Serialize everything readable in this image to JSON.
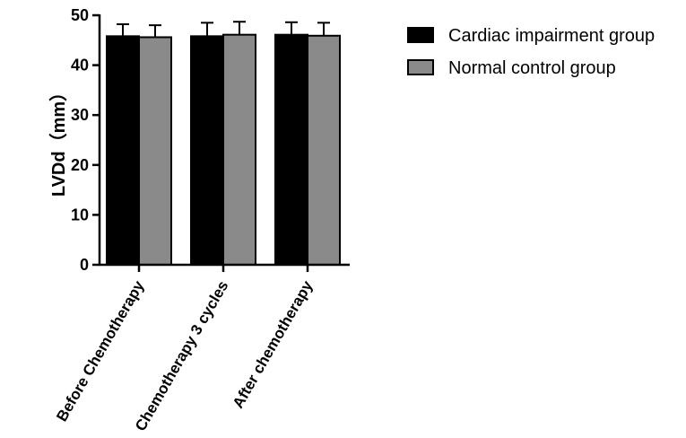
{
  "chart_data": {
    "type": "bar",
    "categories": [
      "Before Chemotherapy",
      "Chemotherapy 3 cycles",
      "After chemotherapy"
    ],
    "series": [
      {
        "name": "Cardiac impairment group",
        "color": "#000000",
        "values": [
          45.8,
          45.8,
          46.1
        ],
        "errors": [
          2.4,
          2.7,
          2.5
        ]
      },
      {
        "name": "Normal control group",
        "color": "#8a8a8a",
        "values": [
          45.6,
          46.1,
          45.9
        ],
        "errors": [
          2.4,
          2.6,
          2.6
        ]
      }
    ],
    "ylabel": "LVDd（mm）",
    "xlabel": "",
    "title": "",
    "ylim": [
      0,
      50
    ],
    "yticks": [
      0,
      10,
      20,
      30,
      40,
      50
    ],
    "grid": false,
    "legend_position": "right"
  }
}
